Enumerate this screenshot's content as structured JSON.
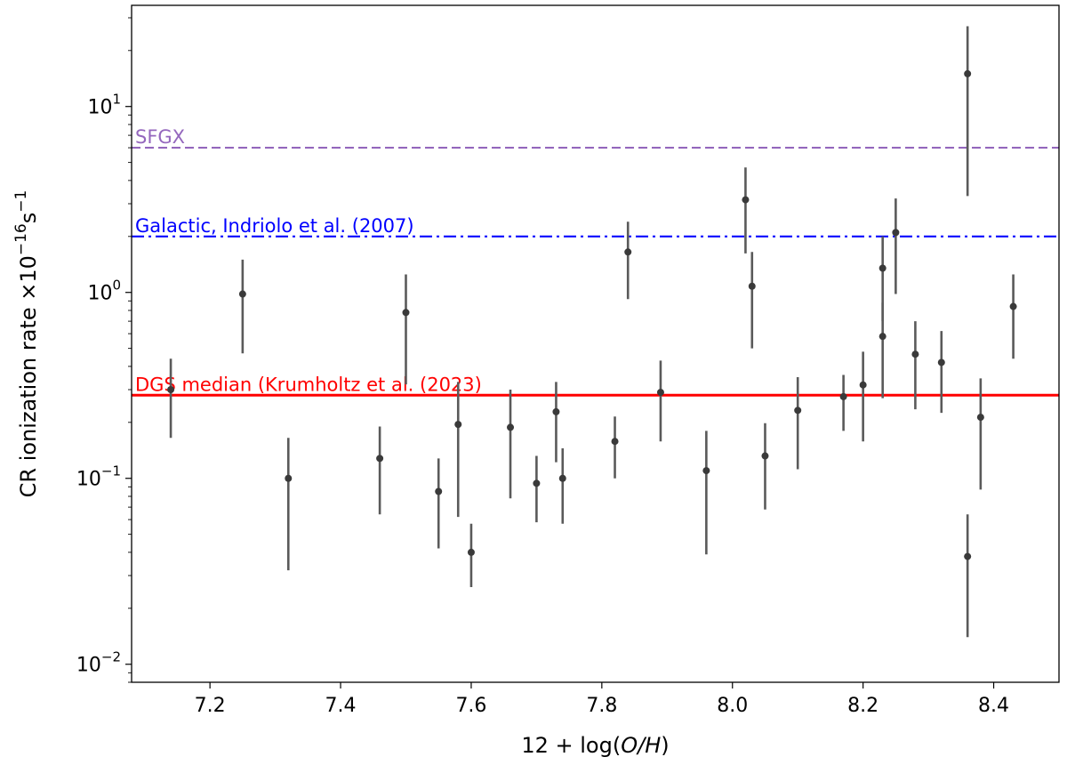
{
  "chart_data": {
    "type": "scatter",
    "title": "",
    "xlabel": {
      "pre": "12 + log(",
      "italic": "O/H",
      "post": ")"
    },
    "ylabel": {
      "text": "CR ionization rate ×10",
      "exp": "−16",
      "unit": "s",
      "unit_exp": "−1"
    },
    "xlim": [
      7.08,
      8.5
    ],
    "ylim": [
      0.008,
      35
    ],
    "yscale": "log",
    "grid": false,
    "xticks": [
      {
        "value": 7.2,
        "label": "7.2"
      },
      {
        "value": 7.4,
        "label": "7.4"
      },
      {
        "value": 7.6,
        "label": "7.6"
      },
      {
        "value": 7.8,
        "label": "7.8"
      },
      {
        "value": 8.0,
        "label": "8.0"
      },
      {
        "value": 8.2,
        "label": "8.2"
      },
      {
        "value": 8.4,
        "label": "8.4"
      }
    ],
    "yticks": [
      {
        "value": 0.01,
        "base": "10",
        "exp": "−2"
      },
      {
        "value": 0.1,
        "base": "10",
        "exp": "−1"
      },
      {
        "value": 1,
        "base": "10",
        "exp": "0"
      },
      {
        "value": 10,
        "base": "10",
        "exp": "1"
      }
    ],
    "reference_lines": [
      {
        "name": "SFGX",
        "value": 6.0,
        "color": "#9467bd",
        "style": "dashed"
      },
      {
        "name": "Galactic, Indriolo et al. (2007)",
        "value": 2.0,
        "color": "#0000ff",
        "style": "dashdot"
      },
      {
        "name": "DGS median (Krumholtz et al. (2023)",
        "value": 0.28,
        "color": "#ff0000",
        "style": "solid"
      }
    ],
    "marker_color": "#3a3a3a",
    "points": [
      {
        "x": 7.14,
        "y": 0.3,
        "lo": 0.165,
        "hi": 0.44
      },
      {
        "x": 7.25,
        "y": 0.98,
        "lo": 0.47,
        "hi": 1.5
      },
      {
        "x": 7.32,
        "y": 0.1,
        "lo": 0.032,
        "hi": 0.165
      },
      {
        "x": 7.46,
        "y": 0.128,
        "lo": 0.064,
        "hi": 0.19
      },
      {
        "x": 7.5,
        "y": 0.78,
        "lo": 0.32,
        "hi": 1.25
      },
      {
        "x": 7.55,
        "y": 0.085,
        "lo": 0.042,
        "hi": 0.128
      },
      {
        "x": 7.58,
        "y": 0.195,
        "lo": 0.062,
        "hi": 0.33
      },
      {
        "x": 7.6,
        "y": 0.04,
        "lo": 0.026,
        "hi": 0.057
      },
      {
        "x": 7.66,
        "y": 0.188,
        "lo": 0.078,
        "hi": 0.3
      },
      {
        "x": 7.7,
        "y": 0.094,
        "lo": 0.058,
        "hi": 0.132
      },
      {
        "x": 7.73,
        "y": 0.228,
        "lo": 0.122,
        "hi": 0.33
      },
      {
        "x": 7.74,
        "y": 0.1,
        "lo": 0.057,
        "hi": 0.145
      },
      {
        "x": 7.82,
        "y": 0.158,
        "lo": 0.1,
        "hi": 0.215
      },
      {
        "x": 7.84,
        "y": 1.65,
        "lo": 0.92,
        "hi": 2.4
      },
      {
        "x": 7.89,
        "y": 0.29,
        "lo": 0.158,
        "hi": 0.43
      },
      {
        "x": 7.96,
        "y": 0.11,
        "lo": 0.039,
        "hi": 0.18
      },
      {
        "x": 8.02,
        "y": 3.15,
        "lo": 1.62,
        "hi": 4.7
      },
      {
        "x": 8.03,
        "y": 1.08,
        "lo": 0.5,
        "hi": 1.65
      },
      {
        "x": 8.05,
        "y": 0.132,
        "lo": 0.068,
        "hi": 0.198
      },
      {
        "x": 8.1,
        "y": 0.232,
        "lo": 0.112,
        "hi": 0.35
      },
      {
        "x": 8.17,
        "y": 0.275,
        "lo": 0.18,
        "hi": 0.36
      },
      {
        "x": 8.2,
        "y": 0.318,
        "lo": 0.158,
        "hi": 0.48
      },
      {
        "x": 8.23,
        "y": 1.35,
        "lo": 0.7,
        "hi": 2.0
      },
      {
        "x": 8.23,
        "y": 0.58,
        "lo": 0.27,
        "hi": 0.88
      },
      {
        "x": 8.25,
        "y": 2.1,
        "lo": 0.98,
        "hi": 3.2
      },
      {
        "x": 8.28,
        "y": 0.465,
        "lo": 0.235,
        "hi": 0.7
      },
      {
        "x": 8.32,
        "y": 0.42,
        "lo": 0.225,
        "hi": 0.62
      },
      {
        "x": 8.36,
        "y": 15.0,
        "lo": 3.3,
        "hi": 27.0
      },
      {
        "x": 8.36,
        "y": 0.038,
        "lo": 0.014,
        "hi": 0.064
      },
      {
        "x": 8.38,
        "y": 0.213,
        "lo": 0.087,
        "hi": 0.345
      },
      {
        "x": 8.43,
        "y": 0.84,
        "lo": 0.44,
        "hi": 1.25
      }
    ]
  }
}
